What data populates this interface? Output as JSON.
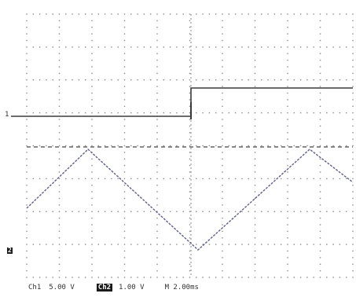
{
  "markers": {
    "ch1": "1",
    "ch2": "2"
  },
  "status": {
    "ch1_label": "Ch1",
    "ch1_scale": "5.00 V",
    "ch2_label": "Ch2",
    "ch2_scale": "1.00 V",
    "timebase": "M 2.00ms"
  },
  "colors": {
    "grid": "#8a8a8a",
    "trace_square": "#3b3b3b",
    "trace_triangle": "#5f5f8a",
    "reference_line": "#444444",
    "background": "#ffffff"
  }
}
